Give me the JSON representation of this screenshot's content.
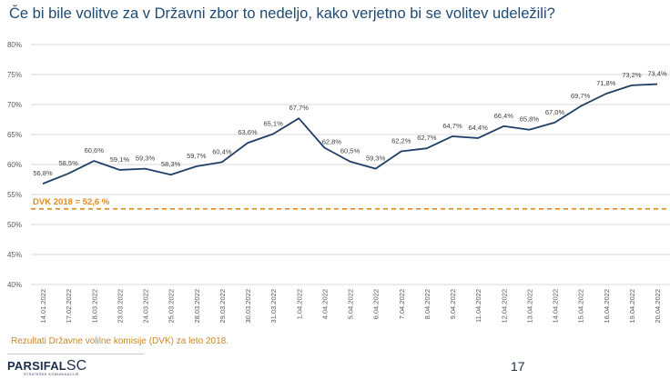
{
  "slide": {
    "title": "Če bi bile volitve za v Državni zbor to nedeljo, kako verjetno bi se volitev udeležili?",
    "footnote": "Rezultati Državne volilne komisije (DVK) za leto 2018.",
    "page_number": "17",
    "logo_main": "PARSIFAL",
    "logo_sc": "SC",
    "logo_sub": "STRATEŠKE KOMUNIKACIJE"
  },
  "colors": {
    "line": "#1e3f66",
    "reference": "#e08a1e",
    "grid": "#d9d9d9",
    "axis_text": "#595959"
  },
  "chart_data": {
    "type": "line",
    "title": "",
    "xlabel": "",
    "ylabel": "",
    "ylim": [
      40,
      80
    ],
    "yticks": [
      40,
      45,
      50,
      55,
      60,
      65,
      70,
      75,
      80
    ],
    "ytick_labels": [
      "40%",
      "45%",
      "50%",
      "55%",
      "60%",
      "65%",
      "70%",
      "75%",
      "80%"
    ],
    "grid": true,
    "categories": [
      "14.01.2022",
      "17.02.2022",
      "18.03.2022",
      "23.03.2022",
      "24.03.2022",
      "25.03.2022",
      "28.03.2022",
      "29.03.2022",
      "30.03.2022",
      "31.03.2022",
      "1.04.2022",
      "4.04.2022",
      "5.04.2022",
      "6.04.2022",
      "7.04.2022",
      "8.04.2022",
      "9.04.2022",
      "11.04.2022",
      "12.04.2022",
      "13.04.2022",
      "14.04.2022",
      "15.04.2022",
      "16.04.2022",
      "19.04.2022",
      "20.04.2022"
    ],
    "series": [
      {
        "values": [
          56.8,
          58.5,
          60.6,
          59.1,
          59.3,
          58.3,
          59.7,
          60.4,
          63.6,
          65.1,
          67.7,
          62.8,
          60.5,
          59.3,
          62.2,
          62.7,
          64.7,
          64.4,
          66.4,
          65.8,
          67.0,
          69.7,
          71.8,
          73.2,
          73.4
        ],
        "labels": [
          "56,8%",
          "58,5%",
          "60,6%",
          "59,1%",
          "59,3%",
          "58,3%",
          "59,7%",
          "60,4%",
          "63,6%",
          "65,1%",
          "67,7%",
          "62,8%",
          "60,5%",
          "59,3%",
          "62,2%",
          "62,7%",
          "64,7%",
          "64,4%",
          "66,4%",
          "65,8%",
          "67,0%",
          "69,7%",
          "71,8%",
          "73,2%",
          "73,4%"
        ]
      }
    ],
    "reference_line": {
      "value": 52.6,
      "label": "DVK 2018 = 52,6 %"
    }
  }
}
